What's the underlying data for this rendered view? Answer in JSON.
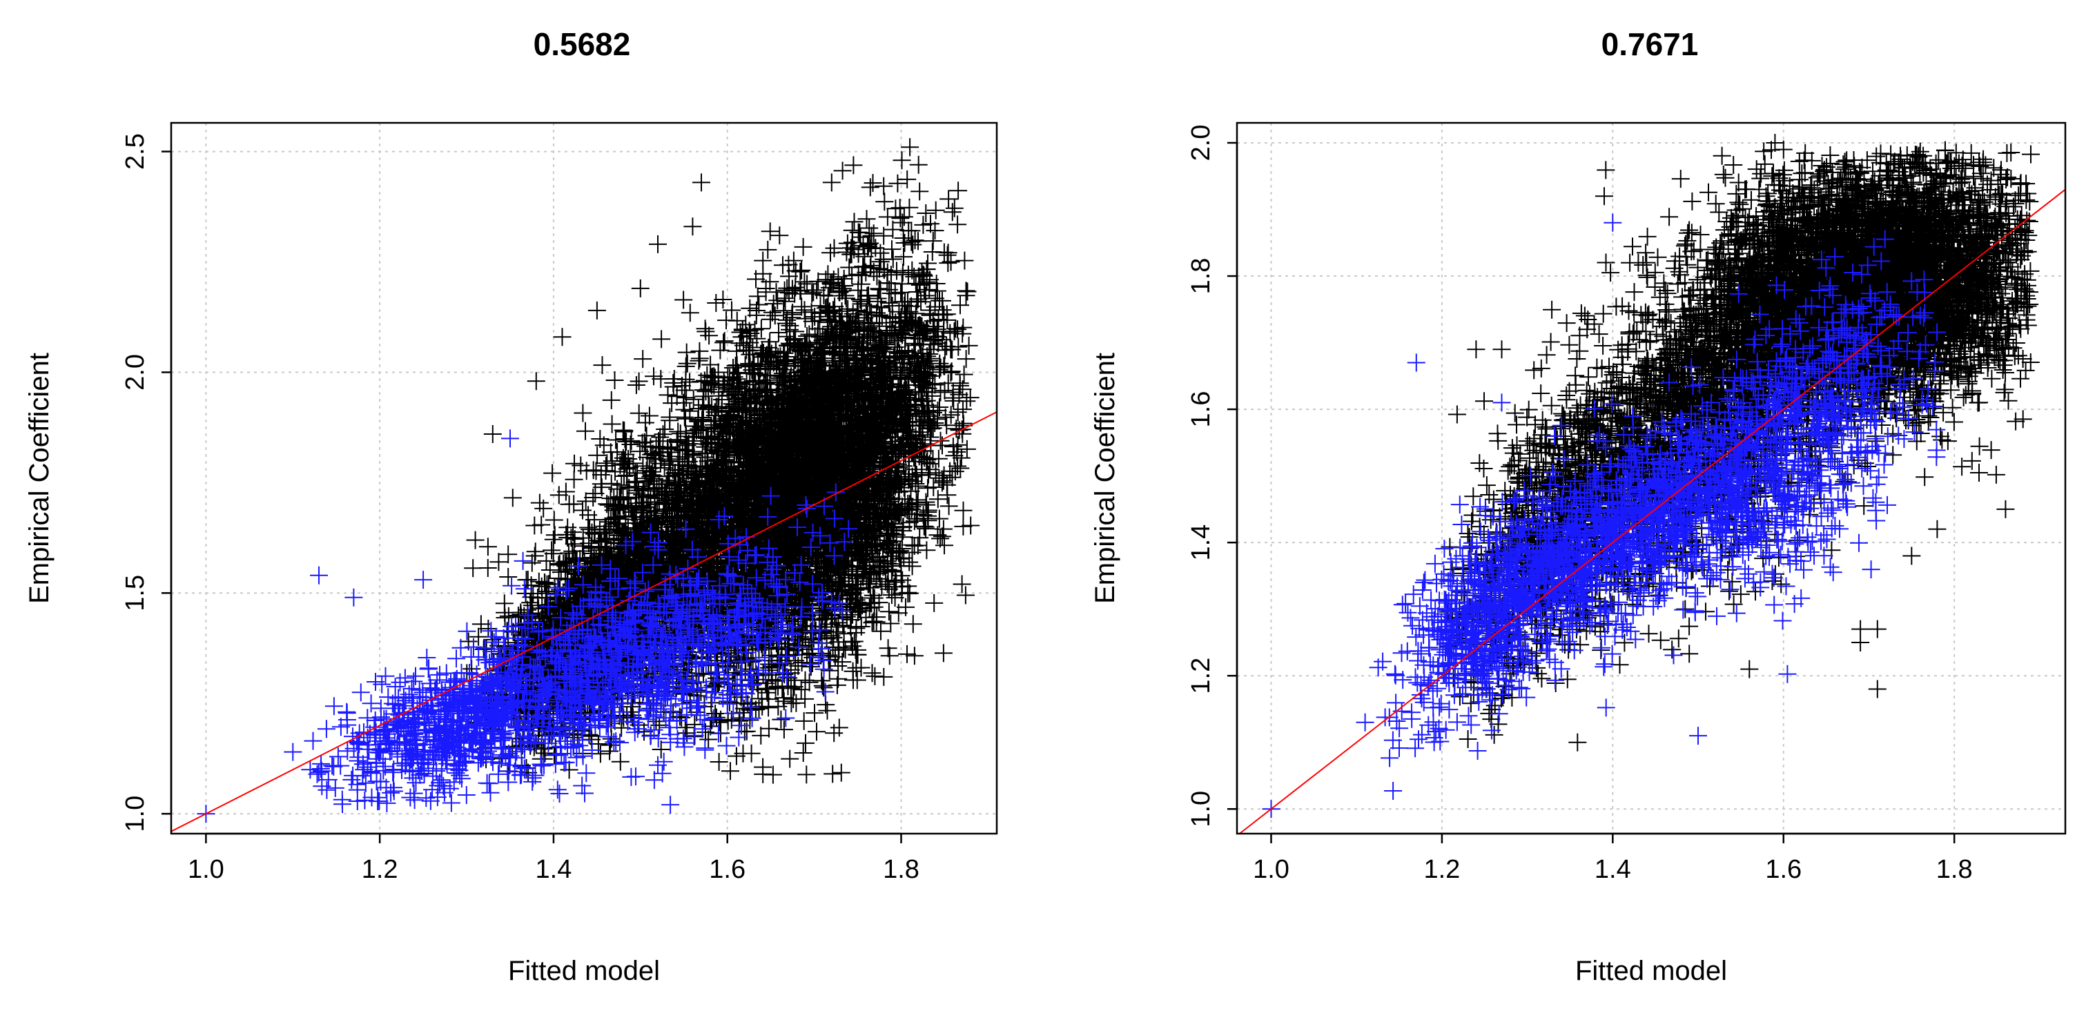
{
  "colors": {
    "background": "#ffffff",
    "points_primary": "#000000",
    "points_secondary": "#1a1aff",
    "fit_line": "#ff0000",
    "grid": "#c8c8c8"
  },
  "chart_data": [
    {
      "type": "scatter",
      "title": "0.5682",
      "xlabel": "Fitted model",
      "ylabel": "Empirical Coefficient",
      "xlim": [
        0.96,
        1.91
      ],
      "ylim": [
        0.955,
        2.565
      ],
      "x_ticks": [
        1.0,
        1.2,
        1.4,
        1.6,
        1.8
      ],
      "x_tick_labels": [
        "1.0",
        "1.2",
        "1.4",
        "1.6",
        "1.8"
      ],
      "y_ticks": [
        1.0,
        1.5,
        2.0,
        2.5
      ],
      "y_tick_labels": [
        "1.0",
        "1.5",
        "2.0",
        "2.5"
      ],
      "grid": true,
      "marker": "+",
      "fit_line": {
        "slope": 1.0,
        "intercept": 0.0
      },
      "series": [
        {
          "color": "#000000",
          "points": [
            [
              1.69,
              1.16
            ],
            [
              1.57,
              2.43
            ],
            [
              1.52,
              2.29
            ],
            [
              1.56,
              2.33
            ],
            [
              1.38,
              1.98
            ],
            [
              1.41,
              2.08
            ],
            [
              1.33,
              1.86
            ],
            [
              1.31,
              1.62
            ],
            [
              1.72,
              2.43
            ],
            [
              1.81,
              2.51
            ],
            [
              1.82,
              2.47
            ],
            [
              1.75,
              1.36
            ],
            [
              1.78,
              1.31
            ],
            [
              1.87,
              1.52
            ],
            [
              1.66,
              2.31
            ],
            [
              1.45,
              2.14
            ],
            [
              1.5,
              2.19
            ]
          ],
          "clouds": [
            {
              "cx": 1.45,
              "cy": 1.42,
              "sx": 0.055,
              "sy": 0.11,
              "rho": 0.6,
              "n": 2200,
              "xmin": 1.3,
              "xmax": 1.88,
              "ymin": 1.08,
              "ymax": 2.5
            },
            {
              "cx": 1.7,
              "cy": 1.75,
              "sx": 0.075,
              "sy": 0.22,
              "rho": 0.4,
              "n": 5200,
              "xmin": 1.3,
              "xmax": 1.88,
              "ymin": 1.08,
              "ymax": 2.5
            },
            {
              "cx": 1.58,
              "cy": 1.65,
              "sx": 0.1,
              "sy": 0.2,
              "rho": 0.5,
              "n": 2200,
              "xmin": 1.3,
              "xmax": 1.88,
              "ymin": 1.08,
              "ymax": 2.5
            }
          ]
        },
        {
          "color": "#1a1aff",
          "points": [
            [
              1.0,
              1.0
            ],
            [
              1.13,
              1.54
            ],
            [
              1.17,
              1.49
            ],
            [
              1.1,
              1.14
            ],
            [
              1.12,
              1.1
            ],
            [
              1.35,
              1.85
            ],
            [
              1.52,
              1.11
            ],
            [
              1.65,
              1.72
            ],
            [
              1.25,
              1.53
            ],
            [
              1.19,
              1.25
            ]
          ],
          "clouds": [
            {
              "cx": 1.28,
              "cy": 1.2,
              "sx": 0.07,
              "sy": 0.08,
              "rho": 0.55,
              "n": 700,
              "xmin": 1.12,
              "xmax": 1.74,
              "ymin": 1.02,
              "ymax": 1.9
            },
            {
              "cx": 1.5,
              "cy": 1.35,
              "sx": 0.1,
              "sy": 0.12,
              "rho": 0.5,
              "n": 1000,
              "xmin": 1.12,
              "xmax": 1.74,
              "ymin": 1.02,
              "ymax": 1.9
            }
          ]
        }
      ]
    },
    {
      "type": "scatter",
      "title": "0.7671",
      "xlabel": "Fitted model",
      "ylabel": "Empirical Coefficient",
      "xlim": [
        0.96,
        1.93
      ],
      "ylim": [
        0.963,
        2.03
      ],
      "x_ticks": [
        1.0,
        1.2,
        1.4,
        1.6,
        1.8
      ],
      "x_tick_labels": [
        "1.0",
        "1.2",
        "1.4",
        "1.6",
        "1.8"
      ],
      "y_ticks": [
        1.0,
        1.2,
        1.4,
        1.6,
        1.8,
        2.0
      ],
      "y_tick_labels": [
        "1.0",
        "1.2",
        "1.4",
        "1.6",
        "1.8",
        "2.0"
      ],
      "grid": true,
      "marker": "+",
      "fit_line": {
        "slope": 1.0,
        "intercept": 0.0
      },
      "series": [
        {
          "color": "#000000",
          "points": [
            [
              1.71,
              1.18
            ],
            [
              1.69,
              1.27
            ],
            [
              1.69,
              1.25
            ],
            [
              1.71,
              1.27
            ],
            [
              1.78,
              1.42
            ],
            [
              1.75,
              1.38
            ],
            [
              1.42,
              1.82
            ],
            [
              1.43,
              1.82
            ],
            [
              1.59,
              2.0
            ],
            [
              1.6,
              1.99
            ],
            [
              1.56,
              1.21
            ],
            [
              1.39,
              1.92
            ],
            [
              1.37,
              1.72
            ],
            [
              1.27,
              1.69
            ],
            [
              1.24,
              1.69
            ],
            [
              1.86,
              1.45
            ]
          ],
          "clouds": [
            {
              "cx": 1.7,
              "cy": 1.78,
              "sx": 0.09,
              "sy": 0.09,
              "rho": 0.2,
              "n": 5800,
              "xmin": 1.2,
              "xmax": 1.89,
              "ymin": 1.1,
              "ymax": 1.99
            },
            {
              "cx": 1.5,
              "cy": 1.58,
              "sx": 0.09,
              "sy": 0.13,
              "rho": 0.55,
              "n": 2200,
              "xmin": 1.2,
              "xmax": 1.89,
              "ymin": 1.1,
              "ymax": 1.99
            },
            {
              "cx": 1.33,
              "cy": 1.42,
              "sx": 0.06,
              "sy": 0.12,
              "rho": 0.6,
              "n": 900,
              "xmin": 1.2,
              "xmax": 1.89,
              "ymin": 1.1,
              "ymax": 1.99
            }
          ]
        },
        {
          "color": "#1a1aff",
          "points": [
            [
              1.0,
              1.0
            ],
            [
              1.17,
              1.67
            ],
            [
              1.5,
              1.11
            ],
            [
              1.27,
              1.61
            ],
            [
              1.4,
              1.88
            ],
            [
              1.11,
              1.13
            ]
          ],
          "clouds": [
            {
              "cx": 1.42,
              "cy": 1.42,
              "sx": 0.1,
              "sy": 0.09,
              "rho": 0.7,
              "n": 1300,
              "xmin": 1.12,
              "xmax": 1.78,
              "ymin": 1.02,
              "ymax": 1.86
            },
            {
              "cx": 1.25,
              "cy": 1.28,
              "sx": 0.05,
              "sy": 0.08,
              "rho": 0.6,
              "n": 500,
              "xmin": 1.12,
              "xmax": 1.78,
              "ymin": 1.02,
              "ymax": 1.86
            },
            {
              "cx": 1.62,
              "cy": 1.55,
              "sx": 0.07,
              "sy": 0.12,
              "rho": 0.5,
              "n": 700,
              "xmin": 1.12,
              "xmax": 1.78,
              "ymin": 1.02,
              "ymax": 1.86
            }
          ]
        }
      ]
    }
  ]
}
